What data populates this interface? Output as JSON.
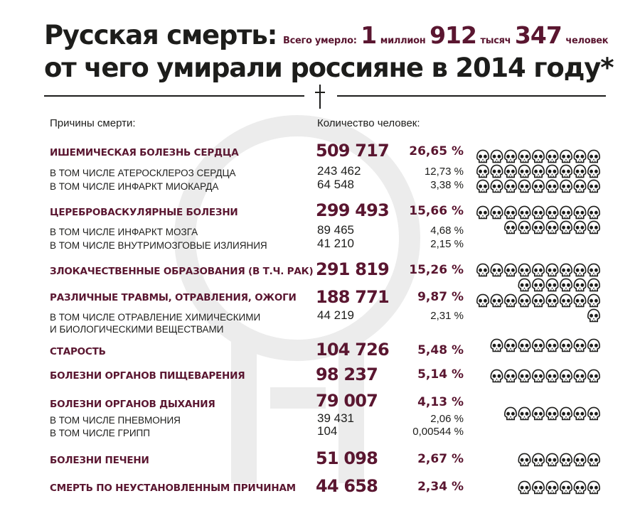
{
  "header": {
    "title_line1": "Русская смерть:",
    "title_line2": "от чего умирали россияне в 2014 году*",
    "total_prefix": "Всего умерло:",
    "total_millions": "1",
    "total_millions_word": "миллион",
    "total_thousands": "912",
    "total_thousands_word": "тысяч",
    "total_units": "347",
    "total_units_word": "человек"
  },
  "columns": {
    "causes_label": "Причины смерти:",
    "count_label": "Количество человек:"
  },
  "colors": {
    "accent": "#5a1630",
    "text": "#1d1d1b",
    "watermark": "#ececec"
  },
  "icons": {
    "divider": "cross-icon",
    "unit": "skull-icon",
    "background": "male-symbol-watermark"
  },
  "causes": [
    {
      "name": "ИШЕМИЧЕСКАЯ БОЛЕЗНЬ СЕРДЦА",
      "count": "509 717",
      "percent": "26,65 %",
      "skulls": 27,
      "subs": [
        {
          "name": "В ТОМ ЧИСЛЕ АТЕРОСКЛЕРОЗ СЕРДЦА",
          "count": "243 462",
          "percent": "12,73 %"
        },
        {
          "name": "В ТОМ ЧИСЛЕ ИНФАРКТ МИОКАРДА",
          "count": "64 548",
          "percent": "3,38  %"
        }
      ]
    },
    {
      "name": "ЦЕРЕБРОВАСКУЛЯРНЫЕ БОЛЕЗНИ",
      "count": "299 493",
      "percent": "15,66 %",
      "skulls": 16,
      "subs": [
        {
          "name": "В ТОМ ЧИСЛЕ ИНФАРКТ МОЗГА",
          "count": "89 465",
          "percent": "4,68 %"
        },
        {
          "name": "В ТОМ ЧИСЛЕ ВНУТРИМОЗГОВЫЕ ИЗЛИЯНИЯ",
          "count": "41 210",
          "percent": "2,15  %"
        }
      ]
    },
    {
      "name": "ЗЛОКАЧЕСТВЕННЫЕ ОБРАЗОВАНИЯ (В Т.Ч. РАК)",
      "count": "291 819",
      "percent": "15,26 %",
      "skulls": 15,
      "subs": []
    },
    {
      "name": "РАЗЛИЧНЫЕ ТРАВМЫ, ОТРАВЛЕНИЯ, ОЖОГИ",
      "count": "188 771",
      "percent": "9,87 %",
      "skulls": 10,
      "subs": [
        {
          "name": "В ТОМ ЧИСЛЕ ОТРАВЛЕНИЕ ХИМИЧЕСКИМИ",
          "name2": "И БИОЛОГИЧЕСКИМИ ВЕЩЕСТВАМИ",
          "count": "44 219",
          "percent": "2,31 %"
        }
      ]
    },
    {
      "name": "СТАРОСТЬ",
      "count": "104 726",
      "percent": "5,48 %",
      "skulls": 8,
      "subs": []
    },
    {
      "name": "БОЛЕЗНИ ОРГАНОВ ПИЩЕВАРЕНИЯ",
      "count": "98 237",
      "percent": "5,14 %",
      "skulls": 8,
      "subs": []
    },
    {
      "name": "БОЛЕЗНИ ОРГАНОВ ДЫХАНИЯ",
      "count": "79 007",
      "percent": "4,13 %",
      "skulls": 7,
      "subs": [
        {
          "name": "В ТОМ ЧИСЛЕ ПНЕВМОНИЯ",
          "count": "39 431",
          "percent": "2,06 %"
        },
        {
          "name": "В ТОМ ЧИСЛЕ ГРИПП",
          "count": "104",
          "percent": "0,00544 %"
        }
      ]
    },
    {
      "name": "БОЛЕЗНИ ПЕЧЕНИ",
      "count": "51 098",
      "percent": "2,67 %",
      "skulls": 6,
      "subs": []
    },
    {
      "name": "СМЕРТЬ ПО НЕУСТАНОВЛЕННЫМ ПРИЧИНАМ",
      "count": "44 658",
      "percent": "2,34 %",
      "skulls": 6,
      "subs": []
    }
  ]
}
